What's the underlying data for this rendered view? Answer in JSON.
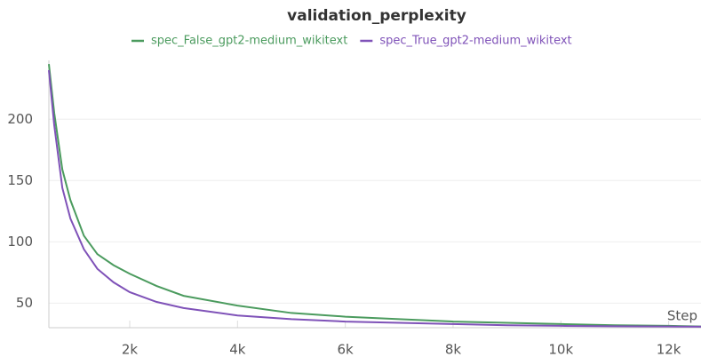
{
  "chart_data": {
    "type": "line",
    "title": "validation_perplexity",
    "x_label": "Step",
    "x": [
      500,
      600,
      750,
      900,
      1150,
      1400,
      1700,
      2000,
      2500,
      3000,
      4000,
      5000,
      6000,
      7000,
      8000,
      9000,
      10000,
      11000,
      12000,
      12600
    ],
    "series": [
      {
        "name": "spec_False_gpt2-medium_wikitext",
        "color": "#4b9b5e",
        "values": [
          245,
          205,
          159,
          134,
          105,
          90,
          81,
          74,
          64,
          56,
          48,
          42,
          39,
          37,
          35,
          34,
          33,
          32,
          31.5,
          31
        ]
      },
      {
        "name": "spec_True_gpt2-medium_wikitext",
        "color": "#7f52b8",
        "values": [
          240,
          195,
          144,
          119,
          94,
          78,
          67,
          59,
          51,
          46,
          40,
          37,
          35,
          34,
          33,
          32,
          31.5,
          31.2,
          31,
          30.8
        ]
      }
    ],
    "xlim": [
      500,
      12600
    ],
    "ylim": [
      30,
      248
    ],
    "xticks": [
      {
        "value": 2000,
        "label": "2k"
      },
      {
        "value": 4000,
        "label": "4k"
      },
      {
        "value": 6000,
        "label": "6k"
      },
      {
        "value": 8000,
        "label": "8k"
      },
      {
        "value": 10000,
        "label": "10k"
      },
      {
        "value": 12000,
        "label": "12k"
      }
    ],
    "yticks": [
      50,
      100,
      150,
      200
    ],
    "grid": true
  }
}
